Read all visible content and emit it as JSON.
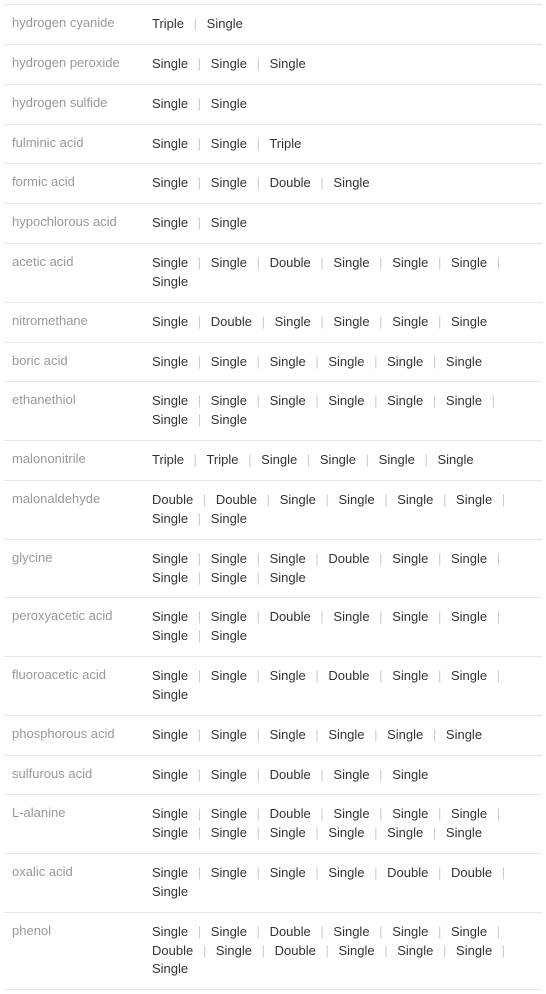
{
  "rows": [
    {
      "label": "hydrogen cyanide",
      "bonds": [
        "Triple",
        "Single"
      ]
    },
    {
      "label": "hydrogen peroxide",
      "bonds": [
        "Single",
        "Single",
        "Single"
      ]
    },
    {
      "label": "hydrogen sulfide",
      "bonds": [
        "Single",
        "Single"
      ]
    },
    {
      "label": "fulminic acid",
      "bonds": [
        "Single",
        "Single",
        "Triple"
      ]
    },
    {
      "label": "formic acid",
      "bonds": [
        "Single",
        "Single",
        "Double",
        "Single"
      ]
    },
    {
      "label": "hypochlorous acid",
      "bonds": [
        "Single",
        "Single"
      ]
    },
    {
      "label": "acetic acid",
      "bonds": [
        "Single",
        "Single",
        "Double",
        "Single",
        "Single",
        "Single",
        "Single"
      ]
    },
    {
      "label": "nitromethane",
      "bonds": [
        "Single",
        "Double",
        "Single",
        "Single",
        "Single",
        "Single"
      ]
    },
    {
      "label": "boric acid",
      "bonds": [
        "Single",
        "Single",
        "Single",
        "Single",
        "Single",
        "Single"
      ]
    },
    {
      "label": "ethanethiol",
      "bonds": [
        "Single",
        "Single",
        "Single",
        "Single",
        "Single",
        "Single",
        "Single",
        "Single"
      ]
    },
    {
      "label": "malononitrile",
      "bonds": [
        "Triple",
        "Triple",
        "Single",
        "Single",
        "Single",
        "Single"
      ]
    },
    {
      "label": "malonaldehyde",
      "bonds": [
        "Double",
        "Double",
        "Single",
        "Single",
        "Single",
        "Single",
        "Single",
        "Single"
      ]
    },
    {
      "label": "glycine",
      "bonds": [
        "Single",
        "Single",
        "Single",
        "Double",
        "Single",
        "Single",
        "Single",
        "Single",
        "Single"
      ]
    },
    {
      "label": "peroxyacetic acid",
      "bonds": [
        "Single",
        "Single",
        "Double",
        "Single",
        "Single",
        "Single",
        "Single",
        "Single"
      ]
    },
    {
      "label": "fluoroacetic acid",
      "bonds": [
        "Single",
        "Single",
        "Single",
        "Double",
        "Single",
        "Single",
        "Single"
      ]
    },
    {
      "label": "phosphorous acid",
      "bonds": [
        "Single",
        "Single",
        "Single",
        "Single",
        "Single",
        "Single"
      ]
    },
    {
      "label": "sulfurous acid",
      "bonds": [
        "Single",
        "Single",
        "Double",
        "Single",
        "Single"
      ]
    },
    {
      "label": "L-alanine",
      "bonds": [
        "Single",
        "Single",
        "Double",
        "Single",
        "Single",
        "Single",
        "Single",
        "Single",
        "Single",
        "Single",
        "Single",
        "Single"
      ]
    },
    {
      "label": "oxalic acid",
      "bonds": [
        "Single",
        "Single",
        "Single",
        "Single",
        "Double",
        "Double",
        "Single"
      ]
    },
    {
      "label": "phenol",
      "bonds": [
        "Single",
        "Single",
        "Double",
        "Single",
        "Single",
        "Single",
        "Double",
        "Single",
        "Double",
        "Single",
        "Single",
        "Single",
        "Single"
      ]
    }
  ],
  "separator": "|",
  "colors": {
    "label": "#999999",
    "bond": "#333333",
    "separator": "#cccccc",
    "border": "#e8e8e8",
    "background": "#ffffff"
  }
}
